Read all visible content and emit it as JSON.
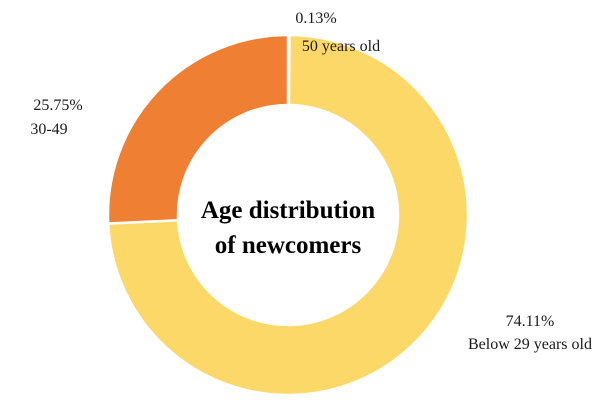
{
  "chart_data": {
    "type": "pie",
    "variant": "donut",
    "title": [
      "Age distribution",
      "of newcomers"
    ],
    "slices": [
      {
        "label": "50 years old",
        "value_label": "0.13%",
        "value": 0.13,
        "color": "#4f7fc0"
      },
      {
        "label": "Below 29 years old",
        "value_label": "74.11%",
        "value": 74.11,
        "color": "#fcd868"
      },
      {
        "label": "30-49",
        "value_label": "25.75%",
        "value": 25.75,
        "color": "#ee7f33"
      }
    ],
    "legend": "none"
  }
}
